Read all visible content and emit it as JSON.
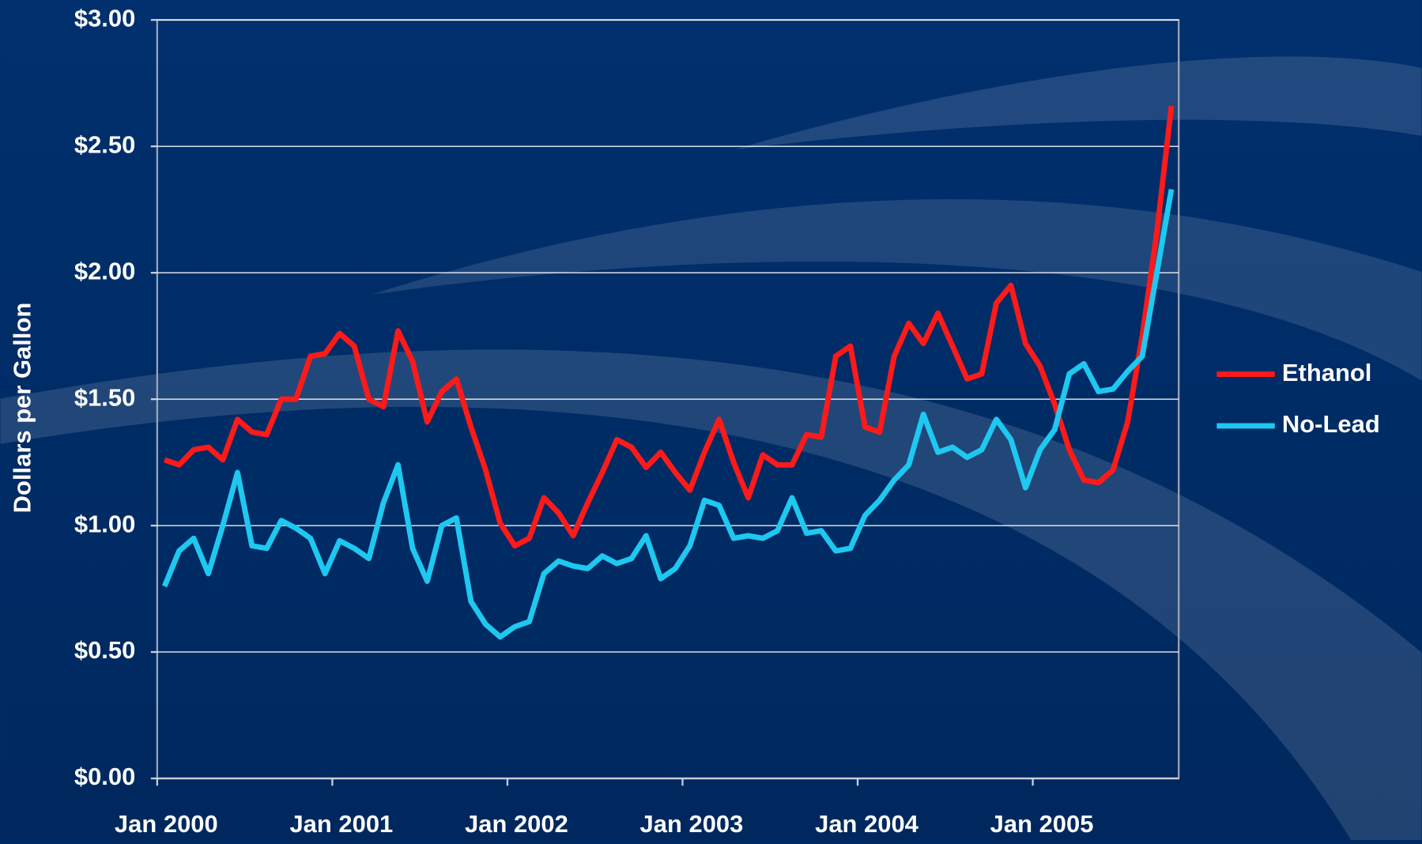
{
  "chart_data": {
    "type": "line",
    "y_label": "Dollars per Gallon",
    "categories": [
      "Jan 2000",
      null,
      null,
      null,
      null,
      null,
      null,
      null,
      null,
      null,
      null,
      null,
      "Jan 2001",
      null,
      null,
      null,
      null,
      null,
      null,
      null,
      null,
      null,
      null,
      null,
      "Jan 2002",
      null,
      null,
      null,
      null,
      null,
      null,
      null,
      null,
      null,
      null,
      null,
      "Jan 2003",
      null,
      null,
      null,
      null,
      null,
      null,
      null,
      null,
      null,
      null,
      null,
      "Jan 2004",
      null,
      null,
      null,
      null,
      null,
      null,
      null,
      null,
      null,
      null,
      null,
      "Jan 2005",
      null,
      null,
      null,
      null,
      null,
      null,
      null,
      null,
      null
    ],
    "series": [
      {
        "name": "Ethanol",
        "color": "#ff1a1a",
        "values": [
          1.26,
          1.24,
          1.3,
          1.31,
          1.26,
          1.42,
          1.37,
          1.36,
          1.5,
          1.5,
          1.67,
          1.68,
          1.76,
          1.71,
          1.5,
          1.47,
          1.77,
          1.65,
          1.41,
          1.53,
          1.58,
          1.39,
          1.22,
          1.01,
          0.92,
          0.95,
          1.11,
          1.05,
          0.96,
          1.09,
          1.21,
          1.34,
          1.31,
          1.23,
          1.29,
          1.21,
          1.14,
          1.29,
          1.42,
          1.25,
          1.11,
          1.28,
          1.24,
          1.24,
          1.36,
          1.35,
          1.67,
          1.71,
          1.39,
          1.37,
          1.67,
          1.8,
          1.72,
          1.84,
          1.71,
          1.58,
          1.6,
          1.88,
          1.95,
          1.72,
          1.63,
          1.48,
          1.3,
          1.18,
          1.17,
          1.22,
          1.41,
          1.75,
          2.16,
          2.66
        ]
      },
      {
        "name": "No-Lead",
        "color": "#1ec8f0",
        "values": [
          0.76,
          0.9,
          0.95,
          0.81,
          1.0,
          1.21,
          0.92,
          0.91,
          1.02,
          0.99,
          0.95,
          0.81,
          0.94,
          0.91,
          0.87,
          1.09,
          1.24,
          0.91,
          0.78,
          1.0,
          1.03,
          0.7,
          0.61,
          0.56,
          0.6,
          0.62,
          0.81,
          0.86,
          0.84,
          0.83,
          0.88,
          0.85,
          0.87,
          0.96,
          0.79,
          0.83,
          0.92,
          1.1,
          1.08,
          0.95,
          0.96,
          0.95,
          0.98,
          1.11,
          0.97,
          0.98,
          0.9,
          0.91,
          1.04,
          1.1,
          1.18,
          1.24,
          1.44,
          1.29,
          1.31,
          1.27,
          1.3,
          1.42,
          1.34,
          1.15,
          1.3,
          1.38,
          1.6,
          1.64,
          1.53,
          1.54,
          1.61,
          1.67,
          2.0,
          2.33
        ]
      }
    ],
    "ylim": [
      0,
      3
    ],
    "yticks": [
      {
        "value": 0,
        "label": "$0.00"
      },
      {
        "value": 0.5,
        "label": "$0.50"
      },
      {
        "value": 1,
        "label": "$1.00"
      },
      {
        "value": 1.5,
        "label": "$1.50"
      },
      {
        "value": 2,
        "label": "$2.00"
      },
      {
        "value": 2.5,
        "label": "$2.50"
      },
      {
        "value": 3,
        "label": "$3.00"
      }
    ],
    "grid": true,
    "legend": "right"
  }
}
